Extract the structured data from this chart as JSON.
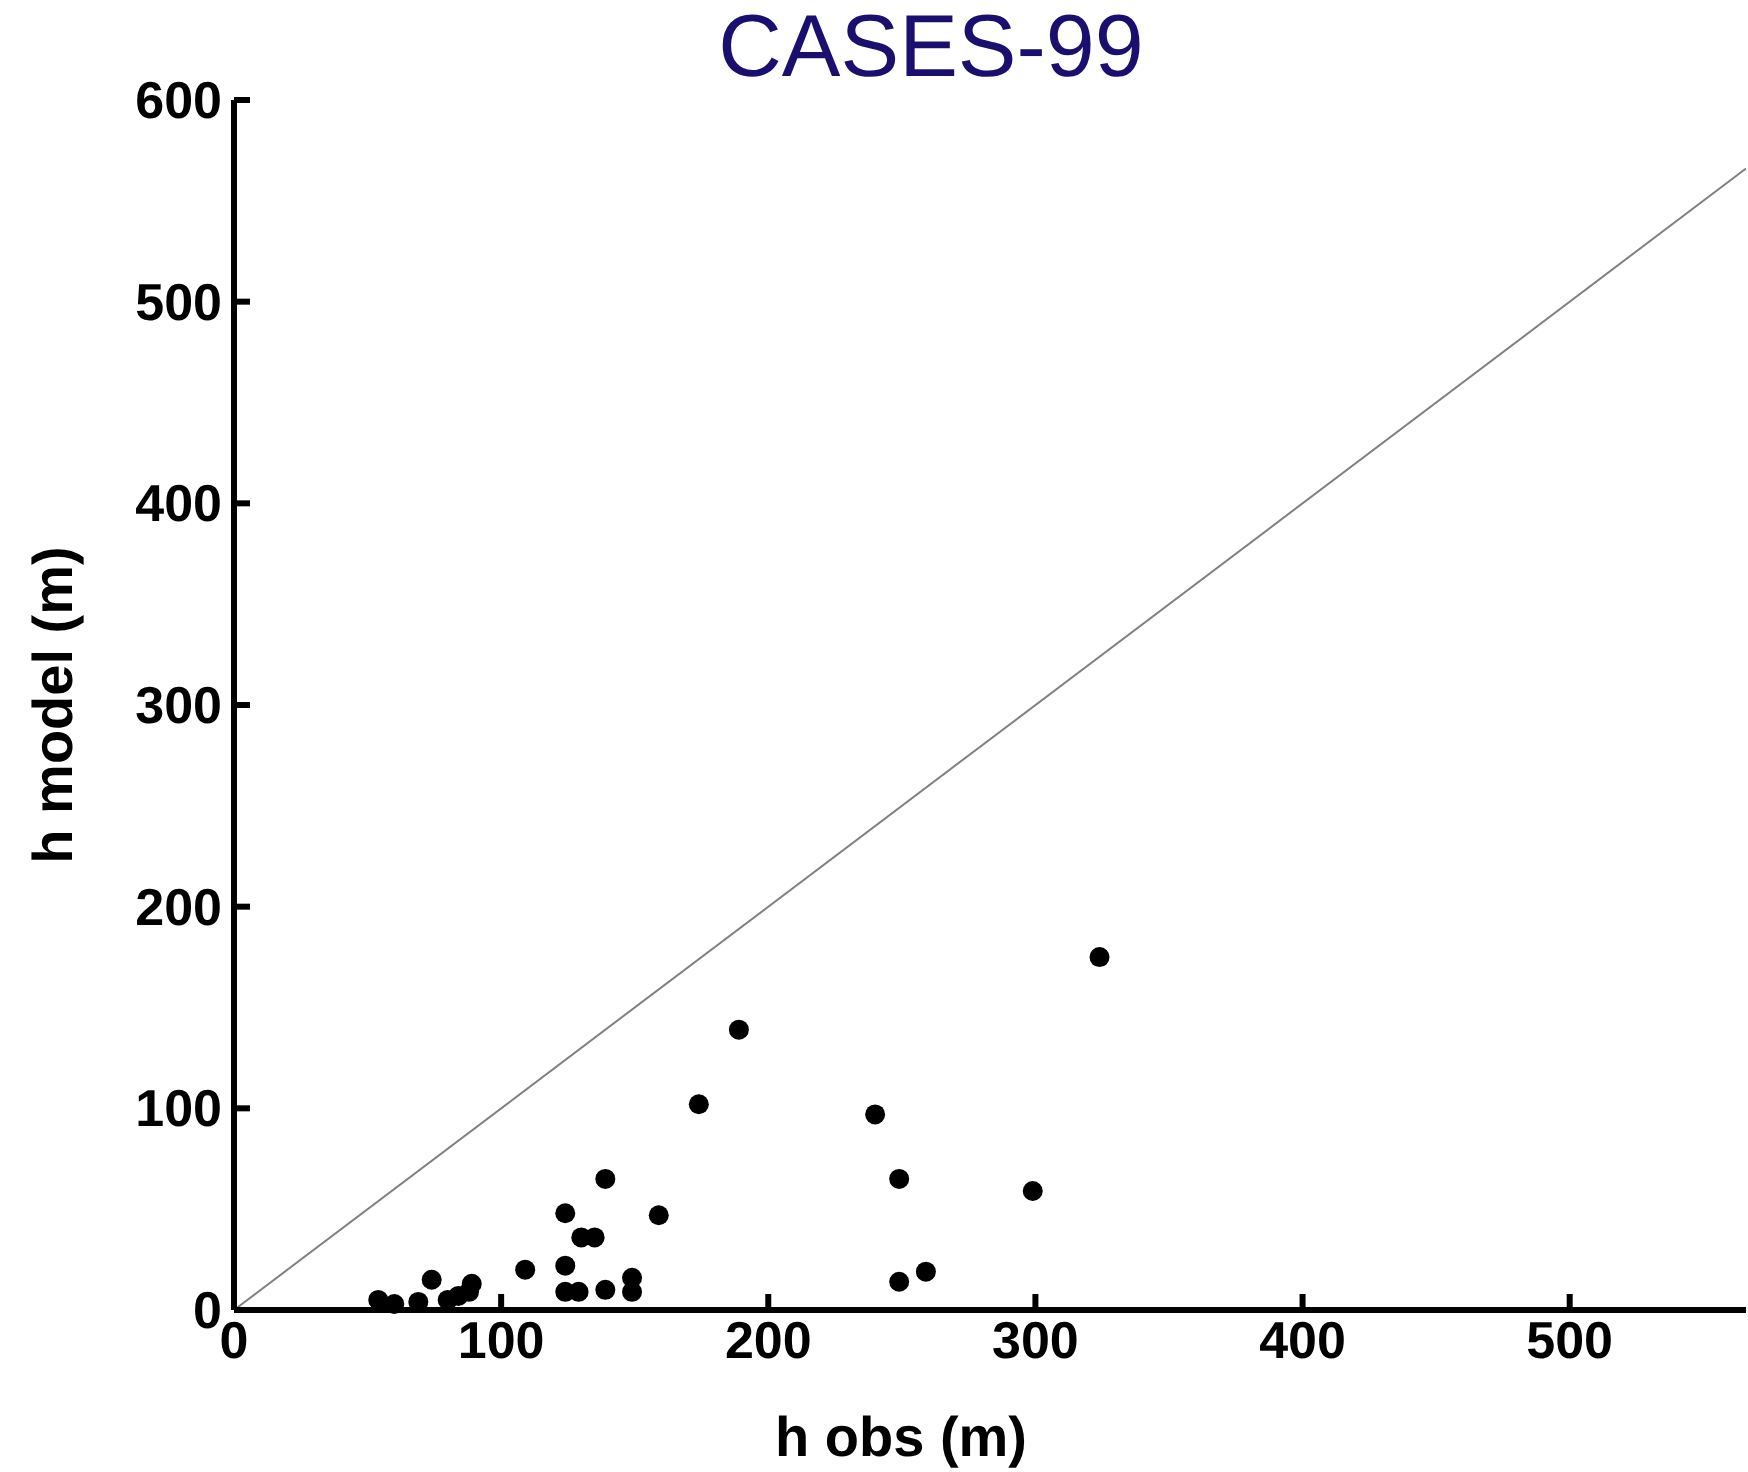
{
  "chart_data": {
    "type": "scatter",
    "title": "CASES-99",
    "xlabel": "h obs (m)",
    "ylabel": "h model (m)",
    "xlim": [
      0,
      566
    ],
    "ylim": [
      0,
      600
    ],
    "xticks": [
      0,
      100,
      200,
      300,
      400,
      500
    ],
    "yticks": [
      0,
      100,
      200,
      300,
      400,
      500,
      600
    ],
    "marker": "circle",
    "grid": false,
    "series": [
      {
        "color": "#000000",
        "x": [
          54,
          60,
          69,
          74,
          80,
          84,
          88,
          89,
          109,
          124,
          124,
          124,
          129,
          130,
          135,
          139,
          139,
          149,
          149,
          159,
          174,
          189,
          240,
          249,
          249,
          259,
          299,
          324
        ],
        "values": [
          5,
          3,
          4,
          15,
          5,
          7,
          9,
          13,
          20,
          22,
          9,
          48,
          9,
          36,
          36,
          10,
          65,
          16,
          9,
          47,
          102,
          139,
          97,
          65,
          14,
          19,
          59,
          175
        ]
      },
      {
        "type": "line",
        "color": "#808080",
        "marker": "none",
        "x": [
          0,
          566
        ],
        "values": [
          0,
          566
        ]
      }
    ]
  }
}
